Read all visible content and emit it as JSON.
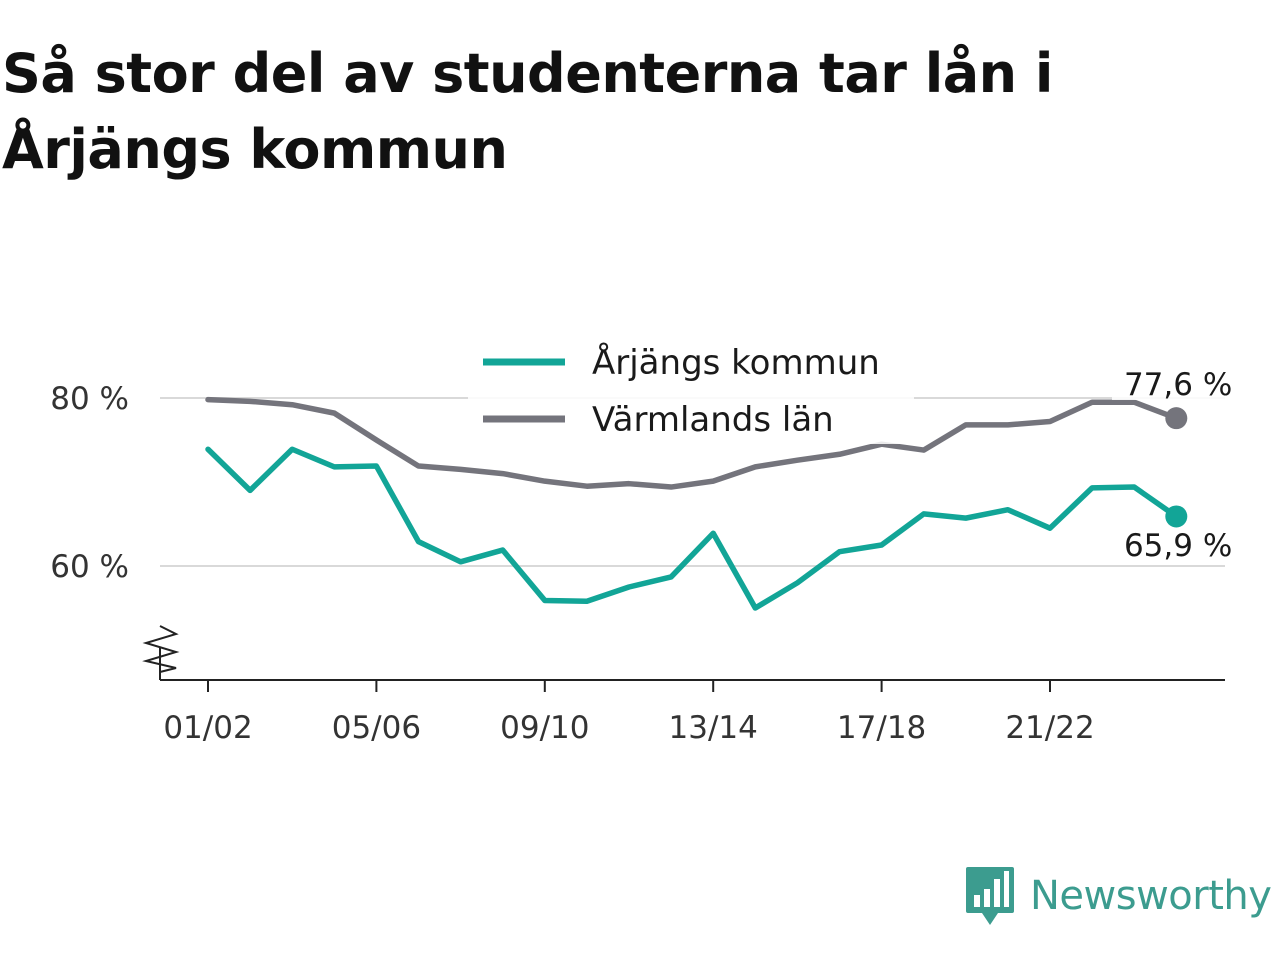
{
  "title": "Så stor del av studenterna tar lån i Årjängs kommun",
  "logo": {
    "text": "Newsworthy",
    "icon": "newsworthy-logo-icon",
    "color": "#3c9c8f"
  },
  "chart_data": {
    "type": "line",
    "categories": [
      "01/02",
      "02/03",
      "03/04",
      "04/05",
      "05/06",
      "06/07",
      "07/08",
      "08/09",
      "09/10",
      "10/11",
      "11/12",
      "12/13",
      "13/14",
      "14/15",
      "15/16",
      "16/17",
      "17/18",
      "18/19",
      "19/20",
      "20/21",
      "21/22",
      "22/23",
      "23/24",
      "24/25"
    ],
    "x_tick_labels": [
      "01/02",
      "05/06",
      "09/10",
      "13/14",
      "17/18",
      "21/22"
    ],
    "y_tick_labels": [
      "80 %",
      "60 %"
    ],
    "y_ticks": [
      80,
      60
    ],
    "ylim": [
      46.5,
      90
    ],
    "y_axis_break": true,
    "grid": "horizontal",
    "legend_position": "top-center",
    "series": [
      {
        "name": "Årjängs kommun",
        "color": "#12a597",
        "values": [
          73.9,
          69.0,
          73.9,
          71.8,
          71.9,
          62.9,
          60.5,
          61.9,
          55.9,
          55.8,
          57.5,
          58.7,
          63.9,
          55.0,
          58.0,
          61.7,
          62.5,
          66.2,
          65.7,
          66.7,
          64.5,
          69.3,
          69.4,
          65.9
        ],
        "end_label": "65,9 %"
      },
      {
        "name": "Värmlands län",
        "color": "#74747c",
        "values": [
          79.8,
          79.6,
          79.2,
          78.2,
          75.0,
          71.9,
          71.5,
          71.0,
          70.1,
          69.5,
          69.8,
          69.4,
          70.1,
          71.8,
          72.6,
          73.3,
          74.5,
          73.8,
          76.8,
          76.8,
          77.2,
          79.5,
          79.5,
          77.6
        ],
        "end_label": "77,6 %"
      }
    ]
  }
}
